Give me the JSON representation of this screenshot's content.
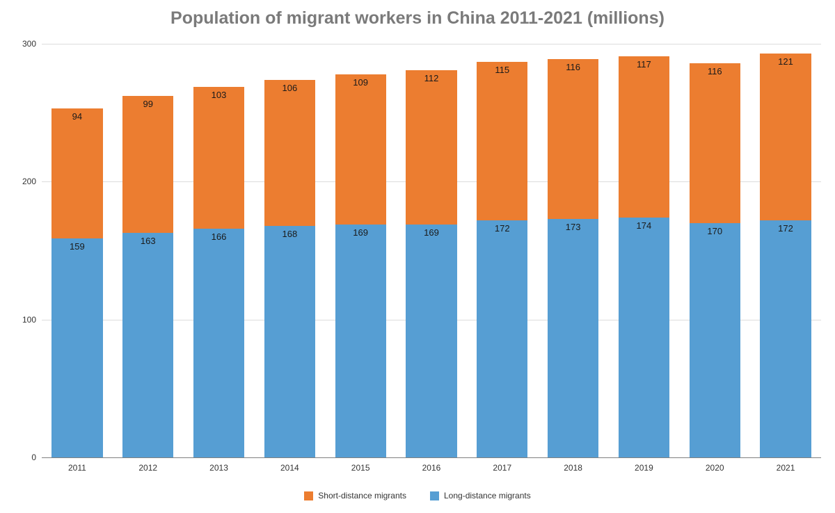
{
  "chart": {
    "type": "stacked-bar",
    "title": "Population of migrant workers in China 2011-2021 (millions)",
    "title_fontsize": 25,
    "title_color": "#7a7a7a",
    "background_color": "#ffffff",
    "grid_color": "#dcdcdc",
    "axis_line_color": "#808080",
    "tick_font_color": "#333333",
    "tick_fontsize": 12,
    "label_fontsize": 13,
    "label_color": "#1a1a1a",
    "ylim": [
      0,
      300
    ],
    "ytick_step": 100,
    "yticks": [
      0,
      100,
      200,
      300
    ],
    "categories": [
      "2011",
      "2012",
      "2013",
      "2014",
      "2015",
      "2016",
      "2017",
      "2018",
      "2019",
      "2020",
      "2021"
    ],
    "series": [
      {
        "key": "long",
        "name": "Long-distance migrants",
        "color": "#569ed3",
        "values": [
          159,
          163,
          166,
          168,
          169,
          169,
          172,
          173,
          174,
          170,
          172
        ]
      },
      {
        "key": "short",
        "name": "Short-distance migrants",
        "color": "#ec7d30",
        "values": [
          94,
          99,
          103,
          106,
          109,
          112,
          115,
          116,
          117,
          116,
          121
        ]
      }
    ],
    "legend_order": [
      "short",
      "long"
    ],
    "legend_fontsize": 12,
    "bar_width": 0.72
  }
}
